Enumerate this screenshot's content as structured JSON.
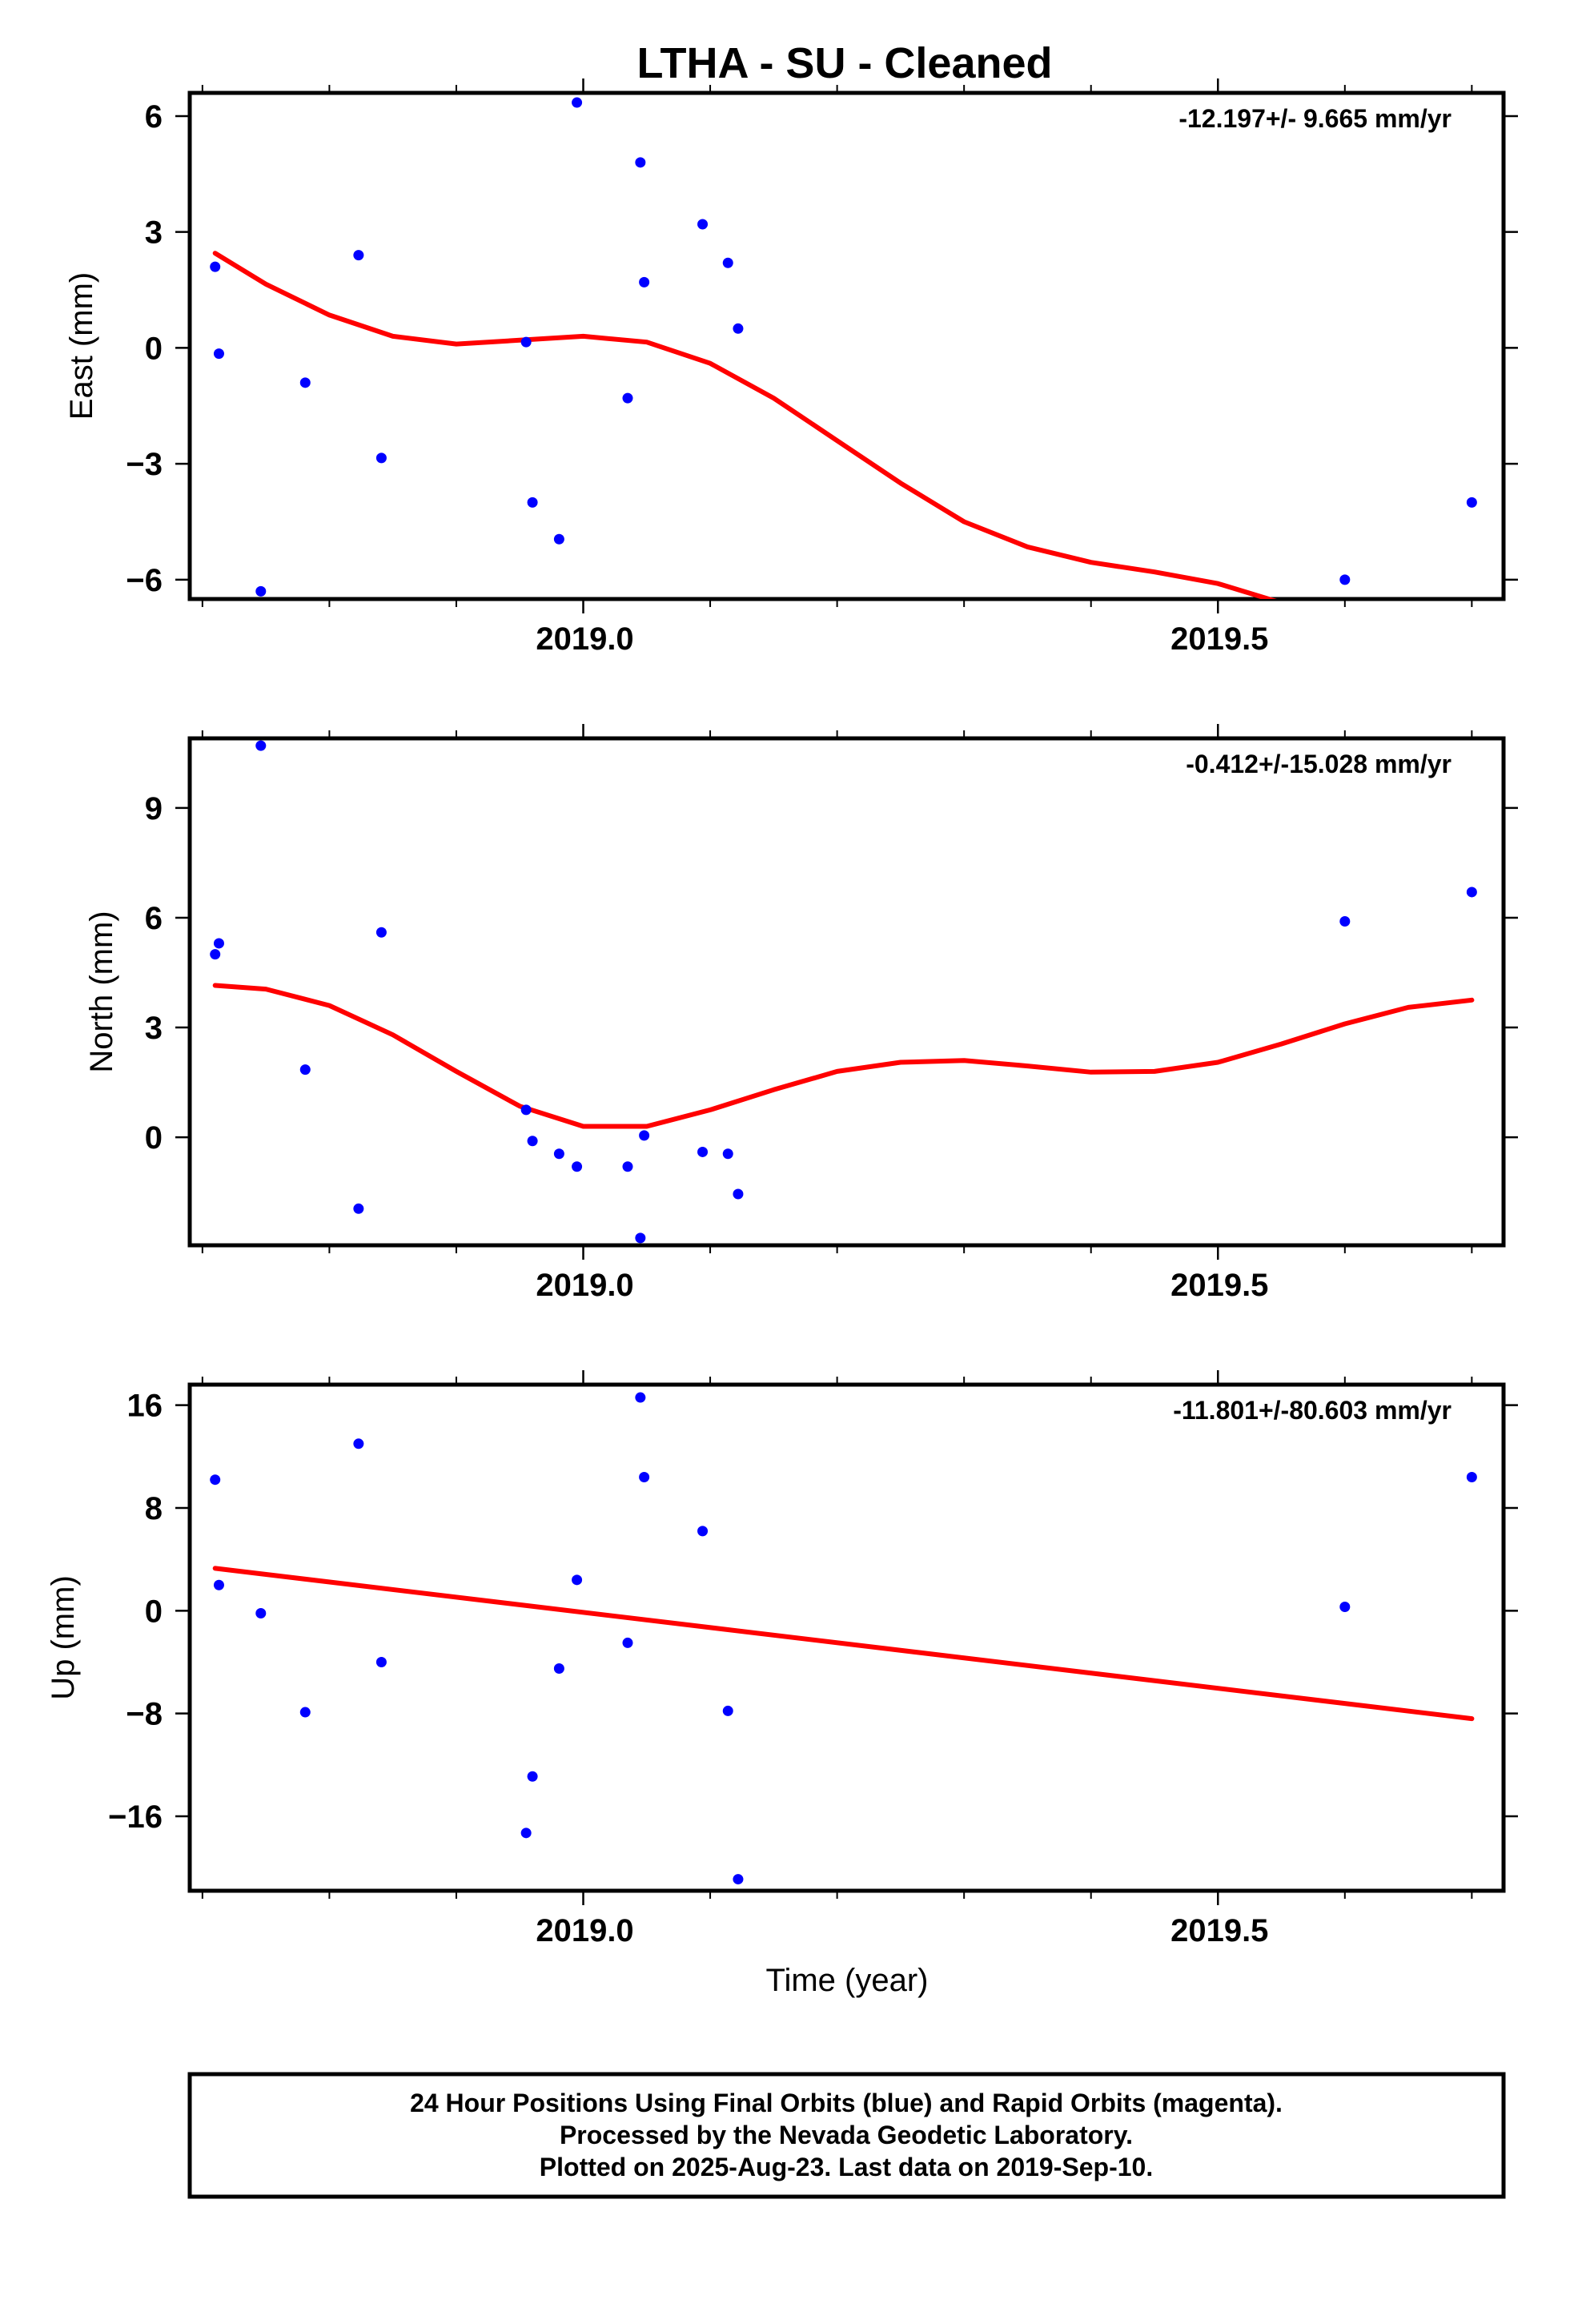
{
  "title": "LTHA  - SU - Cleaned",
  "footer": {
    "lines": [
      "24 Hour Positions Using Final Orbits (blue) and Rapid Orbits (magenta).",
      "Processed by the Nevada Geodetic Laboratory.",
      "Plotted on 2025-Aug-23. Last data on 2019-Sep-10."
    ]
  },
  "colors": {
    "points": "#0000ff",
    "fit": "#ff0000",
    "axes": "#000000"
  },
  "chart_data": [
    {
      "type": "scatter",
      "ylabel": "East (mm)",
      "rate_label": "-12.197+/- 9.665 mm/yr",
      "xlim": [
        2018.69,
        2019.725
      ],
      "ylim": [
        -6.5,
        6.6
      ],
      "x_ticks": [
        2019.0,
        2019.5
      ],
      "x_tick_labels": [
        "2019.0",
        "2019.5"
      ],
      "x_minor_ticks": [
        2018.7,
        2018.8,
        2018.9,
        2019.0,
        2019.1,
        2019.2,
        2019.3,
        2019.4,
        2019.5,
        2019.6,
        2019.7
      ],
      "y_ticks": [
        6,
        3,
        0,
        -3,
        -6
      ],
      "y_tick_labels": [
        "6",
        "3",
        "0",
        "−3",
        "−6"
      ],
      "points": [
        [
          2018.71,
          2.1
        ],
        [
          2018.713,
          -0.15
        ],
        [
          2018.746,
          -6.3
        ],
        [
          2018.781,
          -0.9
        ],
        [
          2018.823,
          2.4
        ],
        [
          2018.841,
          -2.85
        ],
        [
          2018.955,
          0.15
        ],
        [
          2018.96,
          -4.0
        ],
        [
          2018.981,
          -4.95
        ],
        [
          2018.995,
          6.35
        ],
        [
          2019.035,
          -1.3
        ],
        [
          2019.045,
          4.8
        ],
        [
          2019.048,
          1.7
        ],
        [
          2019.094,
          3.2
        ],
        [
          2019.114,
          2.2
        ],
        [
          2019.122,
          0.5
        ],
        [
          2019.6,
          -6.0
        ],
        [
          2019.7,
          -4.0
        ]
      ],
      "fit": [
        [
          2018.71,
          2.45
        ],
        [
          2018.75,
          1.65
        ],
        [
          2018.8,
          0.85
        ],
        [
          2018.85,
          0.3
        ],
        [
          2018.9,
          0.1
        ],
        [
          2018.95,
          0.2
        ],
        [
          2019.0,
          0.3
        ],
        [
          2019.05,
          0.15
        ],
        [
          2019.1,
          -0.4
        ],
        [
          2019.15,
          -1.3
        ],
        [
          2019.2,
          -2.4
        ],
        [
          2019.25,
          -3.5
        ],
        [
          2019.3,
          -4.5
        ],
        [
          2019.35,
          -5.15
        ],
        [
          2019.4,
          -5.55
        ],
        [
          2019.45,
          -5.8
        ],
        [
          2019.5,
          -6.1
        ],
        [
          2019.525,
          -6.35
        ],
        [
          2019.55,
          -6.6
        ]
      ]
    },
    {
      "type": "scatter",
      "ylabel": "North (mm)",
      "rate_label": "-0.412+/-15.028 mm/yr",
      "xlim": [
        2018.69,
        2019.725
      ],
      "ylim": [
        -2.95,
        10.9
      ],
      "x_ticks": [
        2019.0,
        2019.5
      ],
      "x_tick_labels": [
        "2019.0",
        "2019.5"
      ],
      "x_minor_ticks": [
        2018.7,
        2018.8,
        2018.9,
        2019.0,
        2019.1,
        2019.2,
        2019.3,
        2019.4,
        2019.5,
        2019.6,
        2019.7
      ],
      "y_ticks": [
        9,
        6,
        3,
        0
      ],
      "y_tick_labels": [
        "9",
        "6",
        "3",
        "0"
      ],
      "points": [
        [
          2018.71,
          5.0
        ],
        [
          2018.713,
          5.3
        ],
        [
          2018.746,
          10.7
        ],
        [
          2018.781,
          1.85
        ],
        [
          2018.823,
          -1.95
        ],
        [
          2018.841,
          5.6
        ],
        [
          2018.955,
          0.75
        ],
        [
          2018.96,
          -0.1
        ],
        [
          2018.981,
          -0.45
        ],
        [
          2018.995,
          -0.8
        ],
        [
          2019.035,
          -0.8
        ],
        [
          2019.045,
          -2.75
        ],
        [
          2019.048,
          0.05
        ],
        [
          2019.094,
          -0.4
        ],
        [
          2019.114,
          -0.45
        ],
        [
          2019.122,
          -1.55
        ],
        [
          2019.6,
          5.9
        ],
        [
          2019.7,
          6.7
        ]
      ],
      "fit": [
        [
          2018.71,
          4.15
        ],
        [
          2018.75,
          4.05
        ],
        [
          2018.8,
          3.6
        ],
        [
          2018.85,
          2.8
        ],
        [
          2018.9,
          1.8
        ],
        [
          2018.95,
          0.85
        ],
        [
          2019.0,
          0.3
        ],
        [
          2019.05,
          0.3
        ],
        [
          2019.1,
          0.75
        ],
        [
          2019.15,
          1.3
        ],
        [
          2019.2,
          1.8
        ],
        [
          2019.25,
          2.05
        ],
        [
          2019.3,
          2.1
        ],
        [
          2019.35,
          1.95
        ],
        [
          2019.4,
          1.78
        ],
        [
          2019.45,
          1.8
        ],
        [
          2019.5,
          2.05
        ],
        [
          2019.55,
          2.55
        ],
        [
          2019.6,
          3.1
        ],
        [
          2019.65,
          3.55
        ],
        [
          2019.7,
          3.75
        ]
      ]
    },
    {
      "type": "scatter",
      "ylabel": "Up (mm)",
      "rate_label": "-11.801+/-80.603 mm/yr",
      "xlim": [
        2018.69,
        2019.725
      ],
      "ylim": [
        -21.8,
        17.6
      ],
      "x_ticks": [
        2019.0,
        2019.5
      ],
      "x_tick_labels": [
        "2019.0",
        "2019.5"
      ],
      "x_minor_ticks": [
        2018.7,
        2018.8,
        2018.9,
        2019.0,
        2019.1,
        2019.2,
        2019.3,
        2019.4,
        2019.5,
        2019.6,
        2019.7
      ],
      "y_ticks": [
        16,
        8,
        0,
        -8,
        -16
      ],
      "y_tick_labels": [
        "16",
        "8",
        "0",
        "−8",
        "−16"
      ],
      "xlabel": "Time (year)",
      "points": [
        [
          2018.71,
          10.2
        ],
        [
          2018.713,
          2.0
        ],
        [
          2018.746,
          -0.2
        ],
        [
          2018.781,
          -7.9
        ],
        [
          2018.823,
          13.0
        ],
        [
          2018.841,
          -4.0
        ],
        [
          2018.955,
          -17.3
        ],
        [
          2018.96,
          -12.9
        ],
        [
          2018.981,
          -4.5
        ],
        [
          2018.995,
          2.4
        ],
        [
          2019.035,
          -2.5
        ],
        [
          2019.045,
          16.6
        ],
        [
          2019.048,
          10.4
        ],
        [
          2019.094,
          6.2
        ],
        [
          2019.114,
          -7.8
        ],
        [
          2019.122,
          -20.9
        ],
        [
          2019.6,
          0.3
        ],
        [
          2019.7,
          10.4
        ]
      ],
      "fit": [
        [
          2018.71,
          3.3
        ],
        [
          2019.7,
          -8.4
        ]
      ]
    }
  ]
}
